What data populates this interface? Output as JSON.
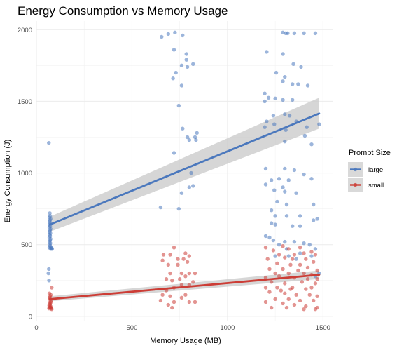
{
  "chart_data": {
    "type": "scatter",
    "title": "Energy Consumption vs Memory Usage",
    "xlabel": "Memory Usage (MB)",
    "ylabel": "Energy Consumption (J)",
    "xlim": [
      0,
      1550
    ],
    "ylim": [
      -30,
      2060
    ],
    "x_ticks": [
      0,
      500,
      1000,
      1500
    ],
    "y_ticks": [
      0,
      500,
      1000,
      1500,
      2000
    ],
    "grid": true,
    "legend": {
      "title": "Prompt Size",
      "position": "right"
    },
    "series": [
      {
        "name": "large",
        "color": "#4b78bd",
        "trend": {
          "x": [
            70,
            1480
          ],
          "y": [
            640,
            1415
          ],
          "ci_low": [
            590,
            1310
          ],
          "ci_high": [
            695,
            1525
          ]
        },
        "points": [
          [
            65,
            1210
          ],
          [
            70,
            720
          ],
          [
            72,
            700
          ],
          [
            68,
            690
          ],
          [
            74,
            680
          ],
          [
            71,
            670
          ],
          [
            69,
            660
          ],
          [
            73,
            650
          ],
          [
            70,
            640
          ],
          [
            72,
            630
          ],
          [
            68,
            620
          ],
          [
            74,
            610
          ],
          [
            71,
            600
          ],
          [
            69,
            590
          ],
          [
            73,
            580
          ],
          [
            70,
            570
          ],
          [
            72,
            560
          ],
          [
            68,
            550
          ],
          [
            74,
            540
          ],
          [
            71,
            530
          ],
          [
            69,
            520
          ],
          [
            73,
            510
          ],
          [
            70,
            500
          ],
          [
            72,
            490
          ],
          [
            68,
            480
          ],
          [
            74,
            470
          ],
          [
            65,
            330
          ],
          [
            63,
            300
          ],
          [
            66,
            250
          ],
          [
            76,
            480
          ],
          [
            80,
            475
          ],
          [
            82,
            470
          ],
          [
            655,
            1950
          ],
          [
            690,
            1970
          ],
          [
            725,
            1980
          ],
          [
            765,
            1960
          ],
          [
            720,
            1860
          ],
          [
            785,
            1830
          ],
          [
            785,
            1790
          ],
          [
            820,
            1760
          ],
          [
            760,
            1750
          ],
          [
            790,
            1740
          ],
          [
            730,
            1700
          ],
          [
            715,
            1660
          ],
          [
            760,
            1610
          ],
          [
            745,
            1470
          ],
          [
            765,
            1310
          ],
          [
            840,
            1280
          ],
          [
            790,
            1250
          ],
          [
            830,
            1250
          ],
          [
            800,
            1230
          ],
          [
            835,
            1230
          ],
          [
            720,
            1140
          ],
          [
            810,
            1000
          ],
          [
            800,
            900
          ],
          [
            760,
            860
          ],
          [
            820,
            910
          ],
          [
            650,
            760
          ],
          [
            745,
            750
          ],
          [
            1290,
            1980
          ],
          [
            1305,
            1975
          ],
          [
            1350,
            1975
          ],
          [
            1400,
            1975
          ],
          [
            1460,
            1975
          ],
          [
            1315,
            1975
          ],
          [
            1205,
            1845
          ],
          [
            1290,
            1830
          ],
          [
            1345,
            1760
          ],
          [
            1385,
            1740
          ],
          [
            1255,
            1700
          ],
          [
            1300,
            1670
          ],
          [
            1290,
            1640
          ],
          [
            1340,
            1620
          ],
          [
            1370,
            1620
          ],
          [
            1420,
            1610
          ],
          [
            1195,
            1555
          ],
          [
            1215,
            1525
          ],
          [
            1250,
            1520
          ],
          [
            1290,
            1510
          ],
          [
            1340,
            1510
          ],
          [
            1195,
            1500
          ],
          [
            1240,
            1400
          ],
          [
            1300,
            1410
          ],
          [
            1325,
            1400
          ],
          [
            1360,
            1360
          ],
          [
            1205,
            1360
          ],
          [
            1245,
            1340
          ],
          [
            1195,
            1320
          ],
          [
            1305,
            1300
          ],
          [
            1415,
            1320
          ],
          [
            1480,
            1340
          ],
          [
            1300,
            1220
          ],
          [
            1405,
            1260
          ],
          [
            1440,
            1200
          ],
          [
            1200,
            1030
          ],
          [
            1300,
            1030
          ],
          [
            1350,
            1020
          ],
          [
            1400,
            990
          ],
          [
            1440,
            960
          ],
          [
            1230,
            950
          ],
          [
            1270,
            960
          ],
          [
            1320,
            950
          ],
          [
            1290,
            900
          ],
          [
            1200,
            920
          ],
          [
            1245,
            880
          ],
          [
            1300,
            870
          ],
          [
            1360,
            860
          ],
          [
            1260,
            800
          ],
          [
            1310,
            780
          ],
          [
            1450,
            780
          ],
          [
            1230,
            740
          ],
          [
            1250,
            700
          ],
          [
            1310,
            700
          ],
          [
            1380,
            700
          ],
          [
            1450,
            670
          ],
          [
            1470,
            680
          ],
          [
            1230,
            650
          ],
          [
            1250,
            640
          ],
          [
            1340,
            630
          ],
          [
            1380,
            630
          ],
          [
            1200,
            560
          ],
          [
            1220,
            550
          ],
          [
            1240,
            530
          ],
          [
            1270,
            500
          ],
          [
            1300,
            520
          ],
          [
            1350,
            520
          ],
          [
            1400,
            510
          ],
          [
            1310,
            470
          ],
          [
            1320,
            420
          ],
          [
            1360,
            400
          ],
          [
            1430,
            500
          ],
          [
            1460,
            470
          ],
          [
            1250,
            420
          ],
          [
            1380,
            440
          ],
          [
            1440,
            420
          ],
          [
            1480,
            300
          ],
          [
            1460,
            280
          ]
        ]
      },
      {
        "name": "small",
        "color": "#cc3d36",
        "trend": {
          "x": [
            70,
            1480
          ],
          "y": [
            120,
            290
          ],
          "ci_low": [
            105,
            260
          ],
          "ci_high": [
            140,
            320
          ]
        },
        "points": [
          [
            70,
            60
          ],
          [
            72,
            65
          ],
          [
            74,
            70
          ],
          [
            76,
            60
          ],
          [
            78,
            55
          ],
          [
            80,
            50
          ],
          [
            71,
            80
          ],
          [
            73,
            90
          ],
          [
            75,
            100
          ],
          [
            77,
            110
          ],
          [
            69,
            120
          ],
          [
            70,
            130
          ],
          [
            72,
            140
          ],
          [
            75,
            150
          ],
          [
            68,
            160
          ],
          [
            80,
            200
          ],
          [
            66,
            55
          ],
          [
            67,
            75
          ],
          [
            69,
            95
          ],
          [
            665,
            430
          ],
          [
            660,
            390
          ],
          [
            720,
            480
          ],
          [
            700,
            430
          ],
          [
            780,
            440
          ],
          [
            770,
            400
          ],
          [
            740,
            400
          ],
          [
            800,
            420
          ],
          [
            790,
            380
          ],
          [
            690,
            360
          ],
          [
            740,
            360
          ],
          [
            760,
            300
          ],
          [
            700,
            300
          ],
          [
            800,
            300
          ],
          [
            680,
            260
          ],
          [
            710,
            250
          ],
          [
            780,
            280
          ],
          [
            830,
            300
          ],
          [
            720,
            200
          ],
          [
            760,
            220
          ],
          [
            680,
            180
          ],
          [
            800,
            220
          ],
          [
            660,
            150
          ],
          [
            700,
            140
          ],
          [
            780,
            150
          ],
          [
            720,
            100
          ],
          [
            690,
            80
          ],
          [
            710,
            60
          ],
          [
            800,
            100
          ],
          [
            830,
            100
          ],
          [
            760,
            130
          ],
          [
            650,
            110
          ],
          [
            750,
            260
          ],
          [
            820,
            240
          ],
          [
            1200,
            480
          ],
          [
            1240,
            460
          ],
          [
            1290,
            490
          ],
          [
            1320,
            470
          ],
          [
            1380,
            480
          ],
          [
            1400,
            440
          ],
          [
            1440,
            450
          ],
          [
            1460,
            430
          ],
          [
            1270,
            430
          ],
          [
            1350,
            430
          ],
          [
            1210,
            400
          ],
          [
            1300,
            410
          ],
          [
            1340,
            400
          ],
          [
            1410,
            400
          ],
          [
            1450,
            380
          ],
          [
            1260,
            370
          ],
          [
            1330,
            360
          ],
          [
            1380,
            360
          ],
          [
            1420,
            340
          ],
          [
            1220,
            330
          ],
          [
            1290,
            330
          ],
          [
            1370,
            320
          ],
          [
            1470,
            320
          ],
          [
            1250,
            300
          ],
          [
            1320,
            300
          ],
          [
            1400,
            300
          ],
          [
            1440,
            290
          ],
          [
            1200,
            270
          ],
          [
            1270,
            280
          ],
          [
            1350,
            270
          ],
          [
            1420,
            260
          ],
          [
            1470,
            260
          ],
          [
            1230,
            240
          ],
          [
            1300,
            230
          ],
          [
            1390,
            240
          ],
          [
            1460,
            230
          ],
          [
            1200,
            200
          ],
          [
            1260,
            200
          ],
          [
            1330,
            190
          ],
          [
            1410,
            190
          ],
          [
            1440,
            200
          ],
          [
            1220,
            170
          ],
          [
            1300,
            160
          ],
          [
            1360,
            150
          ],
          [
            1430,
            150
          ],
          [
            1470,
            140
          ],
          [
            1250,
            120
          ],
          [
            1320,
            120
          ],
          [
            1380,
            110
          ],
          [
            1450,
            110
          ],
          [
            1200,
            100
          ],
          [
            1290,
            90
          ],
          [
            1350,
            80
          ],
          [
            1410,
            70
          ],
          [
            1470,
            60
          ],
          [
            1230,
            60
          ],
          [
            1310,
            60
          ],
          [
            1400,
            50
          ],
          [
            1460,
            50
          ],
          [
            1280,
            180
          ],
          [
            1340,
            200
          ]
        ]
      }
    ]
  }
}
